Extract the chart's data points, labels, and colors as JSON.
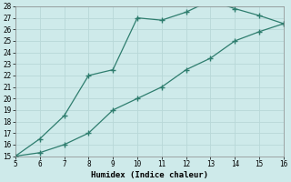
{
  "xlabel": "Humidex (Indice chaleur)",
  "background_color": "#ceeaea",
  "line_color": "#2e7d6e",
  "xlim": [
    5,
    16
  ],
  "ylim": [
    15,
    28
  ],
  "xticks": [
    5,
    6,
    7,
    8,
    9,
    10,
    11,
    12,
    13,
    14,
    15,
    16
  ],
  "yticks": [
    15,
    16,
    17,
    18,
    19,
    20,
    21,
    22,
    23,
    24,
    25,
    26,
    27,
    28
  ],
  "series1_x": [
    5,
    6,
    7,
    8,
    9,
    10,
    11,
    12,
    13,
    14,
    15,
    16
  ],
  "series1_y": [
    15,
    16.5,
    18.5,
    22.0,
    22.5,
    27.0,
    26.8,
    27.5,
    28.5,
    27.8,
    27.2,
    26.5
  ],
  "series2_x": [
    5,
    6,
    7,
    8,
    9,
    10,
    11,
    12,
    13,
    14,
    15,
    16
  ],
  "series2_y": [
    15,
    15.3,
    16.0,
    17.0,
    19.0,
    20.0,
    21.0,
    22.5,
    23.5,
    25.0,
    25.8,
    26.5
  ],
  "grid_color": "#b8d8d8",
  "label_fontsize": 5.5,
  "xlabel_fontsize": 6.5
}
